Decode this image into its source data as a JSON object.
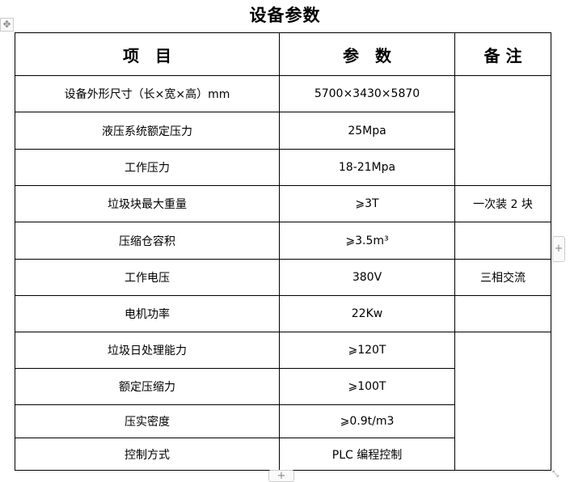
{
  "title": "设备参数",
  "headers": {
    "item": "项　目",
    "param": "参　数",
    "remark": "备 注"
  },
  "rows": [
    {
      "item": "设备外形尺寸（长×宽×高）mm",
      "param": "5700×3430×5870"
    },
    {
      "item": "液压系统额定压力",
      "param": "25Mpa"
    },
    {
      "item": "工作压力",
      "param": "18-21Mpa"
    },
    {
      "item": "垃圾块最大重量",
      "param": "⩾3T",
      "remark": "一次装 2 块"
    },
    {
      "item": "压缩仓容积",
      "param": "⩾3.5m³"
    },
    {
      "item": "工作电压",
      "param": "380V",
      "remark": "三相交流"
    },
    {
      "item": "电机功率",
      "param": "22Kw"
    },
    {
      "item": "垃圾日处理能力",
      "param": "⩾120T"
    },
    {
      "item": "额定压缩力",
      "param": "⩾100T"
    },
    {
      "item": "压实密度",
      "param": "⩾0.9t/m3"
    },
    {
      "item": "控制方式",
      "param": "PLC 编程控制"
    }
  ],
  "controls": {
    "move": "✥",
    "add": "+",
    "resize": "⤡"
  }
}
